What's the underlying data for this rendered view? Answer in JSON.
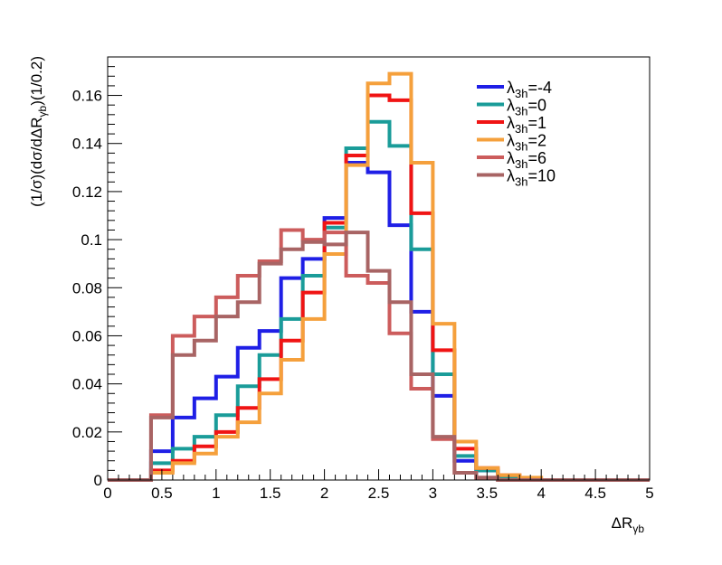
{
  "chart_data": {
    "type": "histogram",
    "title": "",
    "xlabel_main": "ΔR",
    "xlabel_sub": "γb",
    "ylabel_pre": "(1/σ)(dσ/dΔR",
    "ylabel_sub": "γb",
    "ylabel_post": ")(1/0.2)",
    "xlim": [
      0,
      5
    ],
    "ylim": [
      0,
      0.176
    ],
    "bin_width": 0.2,
    "xticks": [
      0,
      0.5,
      1,
      1.5,
      2,
      2.5,
      3,
      3.5,
      4,
      4.5,
      5
    ],
    "xtick_labels": [
      "0",
      "0.5",
      "1",
      "1.5",
      "2",
      "2.5",
      "3",
      "3.5",
      "4",
      "4.5",
      "5"
    ],
    "yticks": [
      0,
      0.02,
      0.04,
      0.06,
      0.08,
      0.1,
      0.12,
      0.14,
      0.16
    ],
    "ytick_labels": [
      "0",
      "0.02",
      "0.04",
      "0.06",
      "0.08",
      "0.1",
      "0.12",
      "0.14",
      "0.16"
    ],
    "grid": false,
    "legend_position": "top-right",
    "series": [
      {
        "legend_main": "λ",
        "legend_sub": "3h",
        "legend_value": "=-4",
        "color": "#1f1fe6",
        "values": [
          0,
          0,
          0.012,
          0.026,
          0.034,
          0.043,
          0.055,
          0.062,
          0.084,
          0.092,
          0.109,
          0.132,
          0.128,
          0.106,
          0.07,
          0.035,
          0.008,
          0.004,
          0.001,
          0,
          0,
          0,
          0,
          0,
          0
        ]
      },
      {
        "legend_main": "λ",
        "legend_sub": "3h",
        "legend_value": "=0",
        "color": "#1a9c99",
        "values": [
          0,
          0,
          0.007,
          0.013,
          0.018,
          0.027,
          0.039,
          0.052,
          0.067,
          0.085,
          0.105,
          0.138,
          0.149,
          0.139,
          0.096,
          0.044,
          0.01,
          0.004,
          0.001,
          0,
          0,
          0,
          0,
          0,
          0
        ]
      },
      {
        "legend_main": "λ",
        "legend_sub": "3h",
        "legend_value": "=1",
        "color": "#f01414",
        "values": [
          0,
          0,
          0.004,
          0.008,
          0.014,
          0.02,
          0.03,
          0.042,
          0.058,
          0.078,
          0.107,
          0.135,
          0.16,
          0.158,
          0.111,
          0.054,
          0.013,
          0.005,
          0.002,
          0,
          0,
          0,
          0,
          0,
          0
        ]
      },
      {
        "legend_main": "λ",
        "legend_sub": "3h",
        "legend_value": "=2",
        "color": "#f5a03c",
        "values": [
          0,
          0,
          0.003,
          0.007,
          0.011,
          0.018,
          0.024,
          0.036,
          0.05,
          0.067,
          0.094,
          0.131,
          0.165,
          0.169,
          0.132,
          0.065,
          0.016,
          0.005,
          0.002,
          0.001,
          0,
          0,
          0,
          0,
          0
        ]
      },
      {
        "legend_main": "λ",
        "legend_sub": "3h",
        "legend_value": "=6",
        "color": "#cc5c5c",
        "values": [
          0,
          0,
          0.027,
          0.06,
          0.068,
          0.076,
          0.085,
          0.091,
          0.104,
          0.1,
          0.103,
          0.085,
          0.082,
          0.061,
          0.038,
          0.017,
          0.003,
          0.001,
          0,
          0,
          0,
          0,
          0,
          0,
          0
        ]
      },
      {
        "legend_main": "λ",
        "legend_sub": "3h",
        "legend_value": "=10",
        "color": "#a86464",
        "values": [
          0,
          0,
          0.026,
          0.052,
          0.058,
          0.068,
          0.074,
          0.09,
          0.096,
          0.099,
          0.098,
          0.103,
          0.087,
          0.074,
          0.044,
          0.018,
          0.003,
          0.001,
          0,
          0,
          0,
          0,
          0,
          0,
          0
        ]
      }
    ]
  }
}
